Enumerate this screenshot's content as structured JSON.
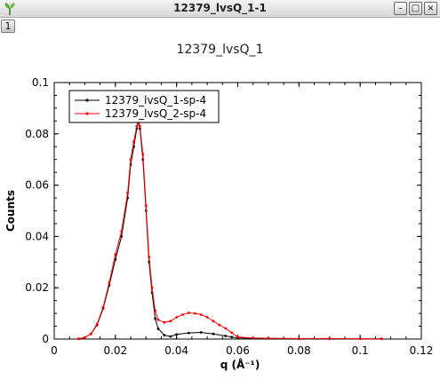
{
  "window": {
    "title": "12379_lvsQ_1-1",
    "tab_label": "1",
    "minimize_glyph": "–",
    "maximize_glyph": "□",
    "close_glyph": "×",
    "icon": "leaf-app-icon"
  },
  "chart_data": {
    "type": "line",
    "title": "12379_lvsQ_1",
    "xlabel": "q (Å⁻¹)",
    "ylabel": "Counts",
    "xlim": [
      0,
      0.12
    ],
    "ylim": [
      0,
      0.1
    ],
    "xticks": [
      0,
      0.02,
      0.04,
      0.06,
      0.08,
      0.1,
      0.12
    ],
    "xtick_labels": [
      "0",
      "0.02",
      "0.04",
      "0.06",
      "0.08",
      "0.1",
      "0.12"
    ],
    "yticks": [
      0,
      0.02,
      0.04,
      0.06,
      0.08,
      0.1
    ],
    "ytick_labels": [
      "0",
      "0.02",
      "0.04",
      "0.06",
      "0.08",
      "0.1"
    ],
    "grid": false,
    "legend_position": "top-left",
    "series": [
      {
        "name": "12379_lvsQ_1-sp-4",
        "color": "#000000",
        "x": [
          0.008,
          0.01,
          0.012,
          0.014,
          0.016,
          0.018,
          0.02,
          0.022,
          0.024,
          0.025,
          0.026,
          0.027,
          0.0275,
          0.028,
          0.029,
          0.03,
          0.031,
          0.032,
          0.033,
          0.034,
          0.036,
          0.038,
          0.04,
          0.044,
          0.048,
          0.052,
          0.056,
          0.058,
          0.06,
          0.065,
          0.07,
          0.08,
          0.09,
          0.1,
          0.107
        ],
        "y": [
          0.0001,
          0.0006,
          0.002,
          0.0055,
          0.012,
          0.021,
          0.031,
          0.04,
          0.055,
          0.068,
          0.075,
          0.082,
          0.085,
          0.082,
          0.07,
          0.05,
          0.03,
          0.018,
          0.008,
          0.004,
          0.0015,
          0.001,
          0.0018,
          0.0024,
          0.0026,
          0.002,
          0.0012,
          0.0008,
          0.0005,
          0.0003,
          0.0002,
          0.0001,
          0.0001,
          0.0001,
          0.0001
        ]
      },
      {
        "name": "12379_lvsQ_2-sp-4",
        "color": "#ff0000",
        "x": [
          0.008,
          0.01,
          0.012,
          0.014,
          0.016,
          0.018,
          0.02,
          0.022,
          0.024,
          0.025,
          0.026,
          0.027,
          0.0275,
          0.028,
          0.029,
          0.03,
          0.031,
          0.032,
          0.033,
          0.034,
          0.036,
          0.038,
          0.04,
          0.042,
          0.044,
          0.046,
          0.048,
          0.05,
          0.052,
          0.054,
          0.056,
          0.058,
          0.06,
          0.065,
          0.07,
          0.08,
          0.09,
          0.1,
          0.107
        ],
        "y": [
          0.0001,
          0.0006,
          0.002,
          0.0058,
          0.0125,
          0.022,
          0.033,
          0.042,
          0.057,
          0.07,
          0.077,
          0.083,
          0.0855,
          0.083,
          0.072,
          0.052,
          0.032,
          0.02,
          0.011,
          0.0075,
          0.0065,
          0.007,
          0.0085,
          0.0095,
          0.0102,
          0.01,
          0.0095,
          0.0085,
          0.007,
          0.0055,
          0.0042,
          0.0025,
          0.0008,
          0.0004,
          0.0003,
          0.0002,
          0.0002,
          0.0001,
          0.0001
        ]
      }
    ]
  }
}
